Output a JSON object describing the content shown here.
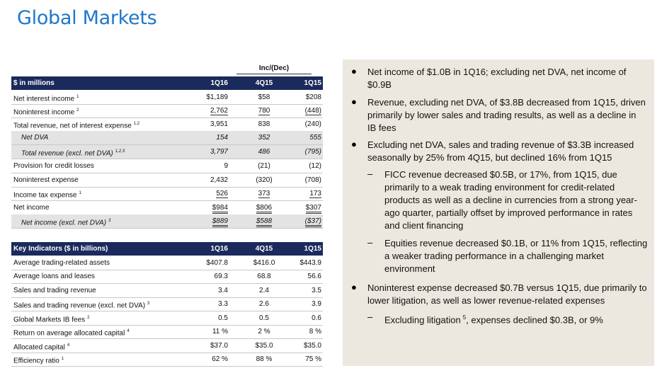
{
  "title": "Global Markets",
  "income_table": {
    "inc_dec_header": "Inc/(Dec)",
    "header": {
      "label": "$ in millions",
      "c1": "1Q16",
      "c2": "4Q15",
      "c3": "1Q15"
    },
    "rows": [
      {
        "label": "Net interest income",
        "sup": "1",
        "c1": "$1,189",
        "c2": "$58",
        "c3": "$208"
      },
      {
        "label": "Noninterest income",
        "sup": "2",
        "c1": "2,762",
        "c2": "780",
        "c3": "(448)"
      },
      {
        "label": "Total revenue, net of interest expense",
        "sup": "1,2",
        "c1": "3,951",
        "c2": "838",
        "c3": "(240)"
      },
      {
        "label": "Net DVA",
        "sup": "",
        "c1": "154",
        "c2": "352",
        "c3": "555"
      },
      {
        "label": "Total revenue (excl. net DVA)",
        "sup": "1,2,3",
        "c1": "3,797",
        "c2": "486",
        "c3": "(795)"
      },
      {
        "label": "Provision for credit losses",
        "sup": "",
        "c1": "9",
        "c2": "(21)",
        "c3": "(12)"
      },
      {
        "label": "Noninterest expense",
        "sup": "",
        "c1": "2,432",
        "c2": "(320)",
        "c3": "(708)"
      },
      {
        "label": "Income tax expense",
        "sup": "1",
        "c1": "526",
        "c2": "373",
        "c3": "173"
      },
      {
        "label": "Net income",
        "sup": "",
        "c1": "$984",
        "c2": "$806",
        "c3": "$307"
      },
      {
        "label": "Net income (excl. net DVA)",
        "sup": "3",
        "c1": "$889",
        "c2": "$588",
        "c3": "($37)"
      }
    ]
  },
  "indicators_table": {
    "header": {
      "label": "Key Indicators ($ in billions)",
      "c1": "1Q16",
      "c2": "4Q15",
      "c3": "1Q15"
    },
    "rows": [
      {
        "label": "Average trading-related assets",
        "sup": "",
        "c1": "$407.8",
        "c2": "$416.0",
        "c3": "$443.9"
      },
      {
        "label": "Average loans and leases",
        "sup": "",
        "c1": "69.3",
        "c2": "68.8",
        "c3": "56.6"
      },
      {
        "label": "Sales and trading revenue",
        "sup": "",
        "c1": "3.4",
        "c2": "2.4",
        "c3": "3.5"
      },
      {
        "label": "Sales and trading revenue (excl. net DVA)",
        "sup": "3",
        "c1": "3.3",
        "c2": "2.6",
        "c3": "3.9"
      },
      {
        "label": "Global Markets IB fees",
        "sup": "2",
        "c1": "0.5",
        "c2": "0.5",
        "c3": "0.6"
      },
      {
        "label": "Return on average allocated capital",
        "sup": "4",
        "c1": "11 %",
        "c2": "2 %",
        "c3": "8 %"
      },
      {
        "label": "Allocated capital",
        "sup": "4",
        "c1": "$37.0",
        "c2": "$35.0",
        "c3": "$35.0"
      },
      {
        "label": "Efficiency ratio",
        "sup": "1",
        "c1": "62 %",
        "c2": "88 %",
        "c3": "75 %"
      }
    ]
  },
  "bullets": [
    {
      "text": "Net income of $1.0B in 1Q16; excluding net DVA, net income of $0.9B"
    },
    {
      "text": "Revenue, excluding net DVA, of $3.8B decreased from 1Q15, driven primarily by lower sales and trading results, as well as a decline in IB fees"
    },
    {
      "text": "Excluding net DVA, sales and trading revenue of $3.3B increased seasonally by 25% from 4Q15, but declined 16% from 1Q15"
    },
    {
      "text": "FICC revenue decreased $0.5B, or 17%, from 1Q15, due primarily to a weak trading environment for credit-related products as well as a decline in currencies from a strong year-ago quarter, partially offset by improved performance in rates and client financing"
    },
    {
      "text": "Equities revenue decreased $0.1B, or 11% from 1Q15, reflecting a weaker trading performance in a challenging market environment"
    },
    {
      "text": "Noninterest expense decreased $0.7B versus 1Q15, due primarily to lower litigation, as well as lower revenue-related expenses"
    },
    {
      "text_a": "Excluding litigation",
      "sup": "5",
      "text_b": ", expenses declined $0.3B, or 9%"
    }
  ]
}
